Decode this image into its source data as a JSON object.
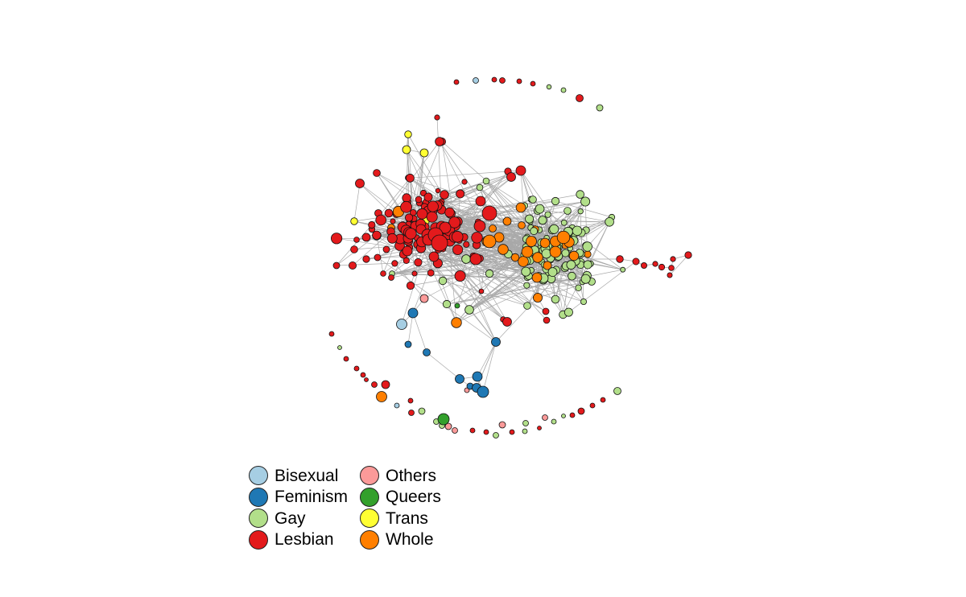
{
  "legend": {
    "items": [
      {
        "label": "Bisexual",
        "color": "#a6cee3"
      },
      {
        "label": "Others",
        "color": "#fb9a99"
      },
      {
        "label": "Feminism",
        "color": "#1f78b4"
      },
      {
        "label": "Queers",
        "color": "#33a02c"
      },
      {
        "label": "Gay",
        "color": "#b2df8a"
      },
      {
        "label": "Trans",
        "color": "#ffff33"
      },
      {
        "label": "Lesbian",
        "color": "#e31a1c"
      },
      {
        "label": "Whole",
        "color": "#ff7f00"
      }
    ]
  },
  "colors": {
    "Bisexual": "#a6cee3",
    "Feminism": "#1f78b4",
    "Gay": "#b2df8a",
    "Lesbian": "#e31a1c",
    "Others": "#fb9a99",
    "Queers": "#33a02c",
    "Trans": "#ffff33",
    "Whole": "#ff7f00",
    "edge": "#a9a9a9"
  }
}
